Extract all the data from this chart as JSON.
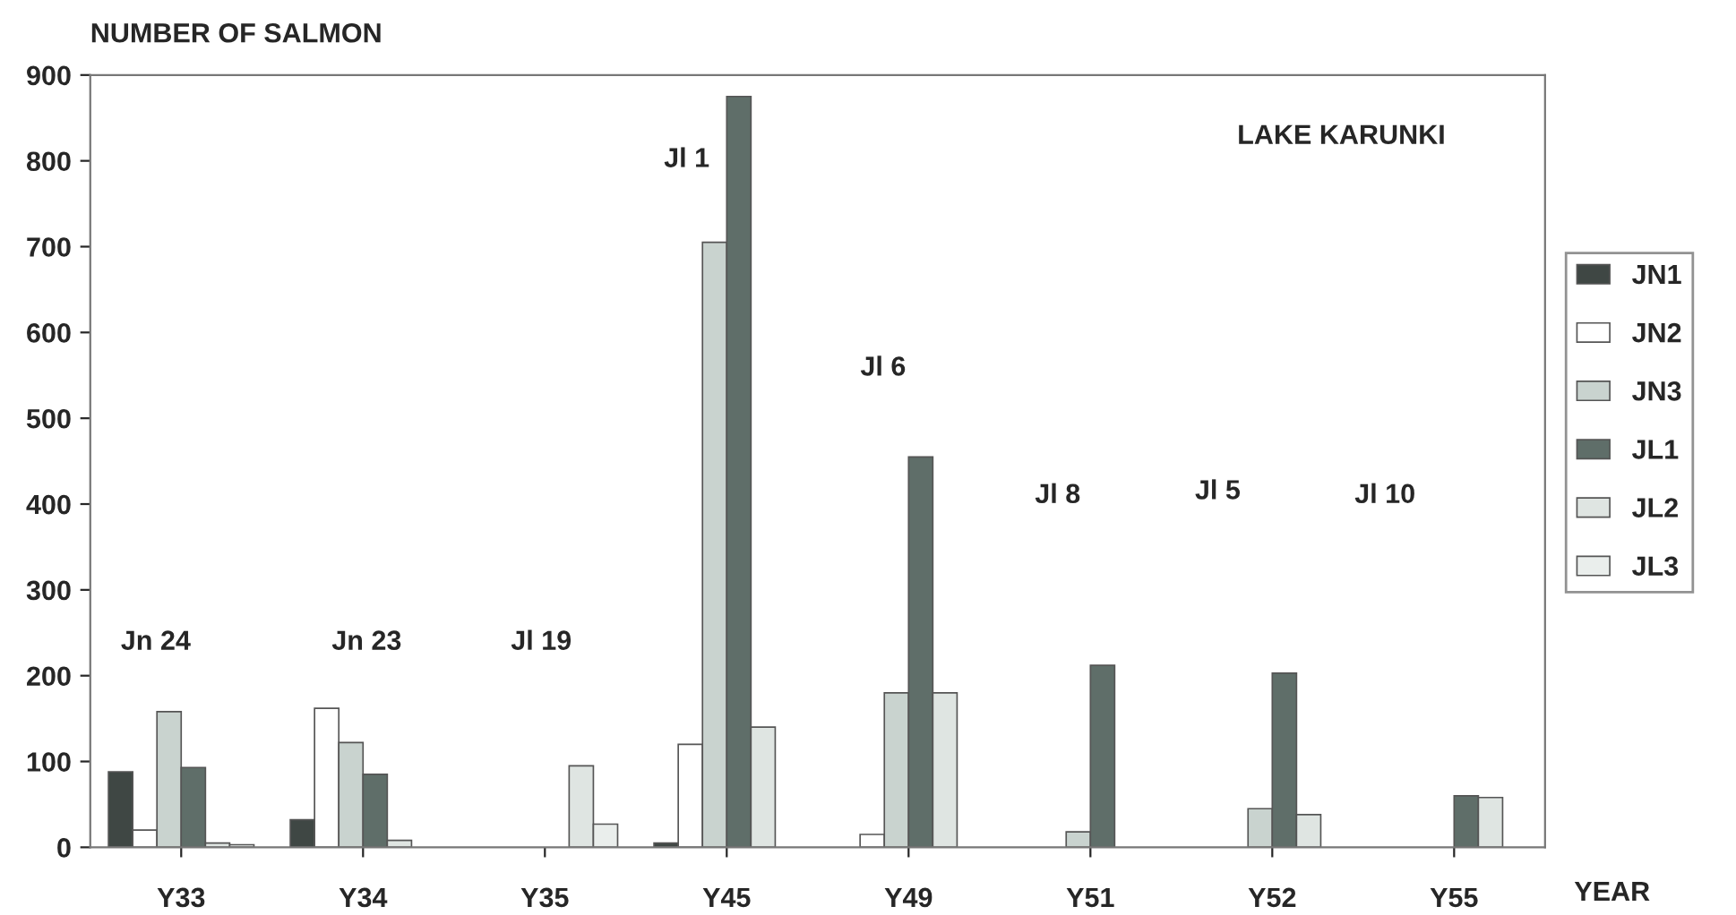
{
  "chart_data": {
    "type": "bar",
    "ylabel": "NUMBER OF SALMON",
    "xlabel": "YEAR",
    "categories": [
      "Y33",
      "Y34",
      "Y35",
      "Y45",
      "Y49",
      "Y51",
      "Y52",
      "Y55"
    ],
    "series": [
      {
        "name": "JN1",
        "color": "#3f4744",
        "values": [
          88,
          32,
          null,
          5,
          null,
          null,
          null,
          null
        ]
      },
      {
        "name": "JN2",
        "color": "#ffffff",
        "values": [
          20,
          162,
          null,
          120,
          15,
          null,
          null,
          null
        ]
      },
      {
        "name": "JN3",
        "color": "#c9d3cf",
        "values": [
          158,
          122,
          null,
          705,
          180,
          18,
          45,
          null
        ]
      },
      {
        "name": "JL1",
        "color": "#5f6e69",
        "values": [
          93,
          85,
          null,
          875,
          455,
          212,
          203,
          60
        ]
      },
      {
        "name": "JL2",
        "color": "#dfe5e2",
        "values": [
          5,
          8,
          95,
          140,
          180,
          null,
          38,
          58
        ]
      },
      {
        "name": "JL3",
        "color": "#eaeeec",
        "values": [
          3,
          null,
          27,
          null,
          null,
          null,
          null,
          null
        ]
      }
    ],
    "ylim": [
      0,
      900
    ],
    "yticks": [
      0,
      100,
      200,
      300,
      400,
      500,
      600,
      700,
      800,
      900
    ],
    "legend": "right",
    "grid": false,
    "annotations": [
      "LAKE KARUNKI",
      "Jn 24",
      "Jn 23",
      "Jl 19",
      "Jl 1",
      "Jl 6",
      "Jl 8",
      "Jl 5",
      "Jl 10"
    ]
  }
}
